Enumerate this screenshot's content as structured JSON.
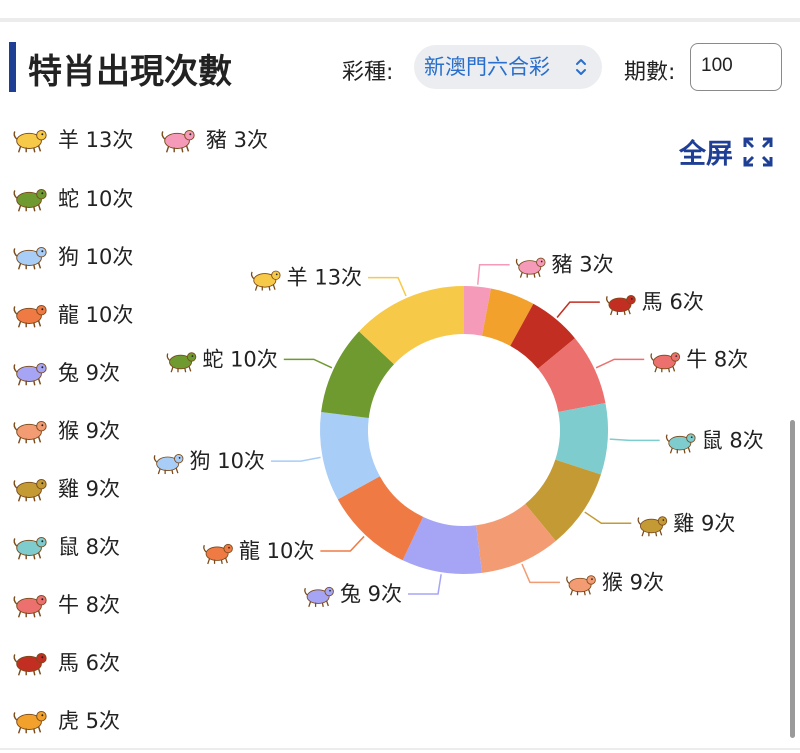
{
  "header": {
    "title": "特肖出現次數",
    "lottery_label": "彩種:",
    "lottery_value": "新澳門六合彩",
    "period_label": "期數:",
    "period_value": "100"
  },
  "fullscreen_label": "全屏",
  "legend": [
    {
      "animal": "羊",
      "count": "13次",
      "color": "#f7c948"
    },
    {
      "animal": "豬",
      "count": "3次",
      "color": "#f59bb9"
    },
    {
      "animal": "蛇",
      "count": "10次",
      "color": "#6e9a2f"
    },
    {
      "animal": "狗",
      "count": "10次",
      "color": "#a8cdf6"
    },
    {
      "animal": "龍",
      "count": "10次",
      "color": "#ef7a44"
    },
    {
      "animal": "兔",
      "count": "9次",
      "color": "#a6a5f5"
    },
    {
      "animal": "猴",
      "count": "9次",
      "color": "#f39b73"
    },
    {
      "animal": "雞",
      "count": "9次",
      "color": "#c49a35"
    },
    {
      "animal": "鼠",
      "count": "8次",
      "color": "#7ecccd"
    },
    {
      "animal": "牛",
      "count": "8次",
      "color": "#ec706e"
    },
    {
      "animal": "馬",
      "count": "6次",
      "color": "#c22f22"
    },
    {
      "animal": "虎",
      "count": "5次",
      "color": "#f2a12c"
    }
  ],
  "chart_data": {
    "type": "pie",
    "donut": true,
    "slices": [
      {
        "label": "豬",
        "value": 3,
        "text": "3次",
        "color": "#f59bb9"
      },
      {
        "label": "虎",
        "value": 5,
        "text": "",
        "color": "#f2a12c"
      },
      {
        "label": "馬",
        "value": 6,
        "text": "6次",
        "color": "#c22f22"
      },
      {
        "label": "牛",
        "value": 8,
        "text": "8次",
        "color": "#ec706e"
      },
      {
        "label": "鼠",
        "value": 8,
        "text": "8次",
        "color": "#7ecccd"
      },
      {
        "label": "雞",
        "value": 9,
        "text": "9次",
        "color": "#c49a35"
      },
      {
        "label": "猴",
        "value": 9,
        "text": "9次",
        "color": "#f39b73"
      },
      {
        "label": "兔",
        "value": 9,
        "text": "9次",
        "color": "#a6a5f5"
      },
      {
        "label": "龍",
        "value": 10,
        "text": "10次",
        "color": "#ef7a44"
      },
      {
        "label": "狗",
        "value": 10,
        "text": "10次",
        "color": "#a8cdf6"
      },
      {
        "label": "蛇",
        "value": 10,
        "text": "10次",
        "color": "#6e9a2f"
      },
      {
        "label": "羊",
        "value": 13,
        "text": "13次",
        "color": "#f7c948"
      }
    ]
  }
}
